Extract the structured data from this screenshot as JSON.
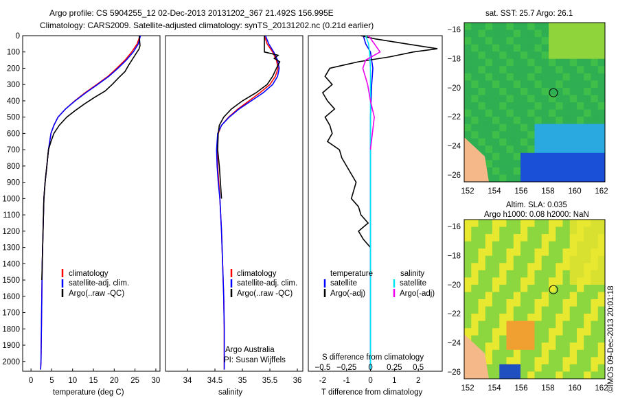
{
  "header": {
    "line1": "Argo profile: CS 5904255_12 02-Dec-2013 20131202_367 21.492S 156.995E",
    "line2": "Climatology: CARS2009. Satellite-adjusted climatology: synTS_20131202.nc (0.21d earlier)"
  },
  "colors": {
    "climatology": "#ff0000",
    "satellite": "#0000ff",
    "argo": "#000000",
    "salinity_satellite": "#00e5ee",
    "salinity_argo": "#ee00ee"
  },
  "chart_data": [
    {
      "id": "temperature",
      "type": "line",
      "xlabel": "temperature (deg C)",
      "xlim": [
        -2,
        31
      ],
      "xticks": [
        0,
        5,
        10,
        15,
        20,
        25,
        30
      ],
      "ylim": [
        0,
        2060
      ],
      "yticks": [
        0,
        100,
        200,
        300,
        400,
        500,
        600,
        700,
        800,
        900,
        1000,
        1100,
        1200,
        1300,
        1400,
        1500,
        1600,
        1700,
        1800,
        1900,
        2000
      ],
      "legend": [
        "climatology",
        "satellite-adj. clim.",
        "Argo(..raw -QC)"
      ],
      "series": [
        {
          "name": "climatology",
          "x": [
            26.2,
            25.5,
            24.2,
            22.6,
            20.6,
            18.5,
            15.8,
            13.0,
            10.5,
            8.3,
            6.5,
            5.5,
            4.8,
            4.2,
            3.8,
            3.4,
            3.1,
            2.9,
            2.7,
            2.6,
            2.5,
            2.4,
            2.3
          ],
          "y": [
            0,
            50,
            100,
            150,
            200,
            250,
            300,
            350,
            400,
            450,
            500,
            550,
            600,
            700,
            800,
            900,
            1000,
            1200,
            1400,
            1600,
            1800,
            2000,
            2050
          ]
        },
        {
          "name": "satellite-adj. clim.",
          "x": [
            26.3,
            25.8,
            24.6,
            22.9,
            20.9,
            18.7,
            16.0,
            13.2,
            10.6,
            8.3,
            6.5,
            5.5,
            4.8,
            4.2,
            3.8,
            3.4,
            3.1,
            2.9,
            2.7,
            2.6,
            2.5,
            2.4,
            2.3
          ],
          "y": [
            0,
            50,
            100,
            150,
            200,
            250,
            300,
            350,
            400,
            450,
            500,
            550,
            600,
            700,
            800,
            900,
            1000,
            1200,
            1400,
            1600,
            1800,
            2000,
            2050
          ]
        },
        {
          "name": "Argo(..raw -QC)",
          "x": [
            26.0,
            26.2,
            26.0,
            25.0,
            23.5,
            22.6,
            21.0,
            19.5,
            17.8,
            15.2,
            12.8,
            10.6,
            8.6,
            6.8,
            5.5,
            4.8,
            4.2,
            3.8,
            3.4,
            3.1,
            2.9,
            2.7,
            2.6
          ],
          "y": [
            0,
            60,
            80,
            120,
            180,
            220,
            260,
            300,
            340,
            380,
            420,
            460,
            500,
            550,
            600,
            650,
            700,
            800,
            900,
            1000,
            1200,
            1400,
            1500
          ]
        }
      ]
    },
    {
      "id": "salinity",
      "type": "line",
      "xlabel": "salinity",
      "xlim": [
        33.6,
        36.1
      ],
      "xticks": [
        34,
        34.5,
        35,
        35.5,
        36
      ],
      "xticklabels": [
        "34",
        "34.5",
        "35",
        "35.5",
        "36"
      ],
      "ylim": [
        0,
        2060
      ],
      "legend": [
        "climatology",
        "satellite-adj. clim.",
        "Argo(..raw -QC)"
      ],
      "annotation": [
        "Argo Australia",
        "PI: Susan Wijffels"
      ],
      "series": [
        {
          "name": "climatology",
          "x": [
            35.4,
            35.45,
            35.55,
            35.62,
            35.65,
            35.6,
            35.5,
            35.32,
            35.12,
            34.92,
            34.75,
            34.62,
            34.56,
            34.54,
            34.55,
            34.57,
            34.59,
            34.62,
            34.64,
            34.66,
            34.67,
            34.67
          ],
          "y": [
            0,
            50,
            100,
            150,
            200,
            250,
            300,
            350,
            400,
            450,
            500,
            550,
            600,
            700,
            800,
            900,
            1000,
            1200,
            1400,
            1600,
            1800,
            2050
          ]
        },
        {
          "name": "satellite-adj. clim.",
          "x": [
            35.42,
            35.48,
            35.57,
            35.64,
            35.67,
            35.64,
            35.55,
            35.38,
            35.16,
            34.94,
            34.76,
            34.62,
            34.55,
            34.53,
            34.54,
            34.56,
            34.59,
            34.62,
            34.64,
            34.66,
            34.67,
            34.67
          ],
          "y": [
            0,
            50,
            100,
            150,
            200,
            250,
            300,
            350,
            400,
            450,
            500,
            550,
            600,
            700,
            800,
            900,
            1000,
            1200,
            1400,
            1600,
            1800,
            2050
          ]
        },
        {
          "name": "Argo(..raw -QC)",
          "x": [
            35.4,
            35.4,
            35.65,
            35.58,
            35.68,
            35.62,
            35.55,
            35.45,
            35.25,
            35.0,
            34.8,
            34.66,
            34.58,
            34.56,
            34.55,
            34.58,
            34.6,
            34.62
          ],
          "y": [
            0,
            100,
            120,
            140,
            160,
            200,
            250,
            300,
            350,
            400,
            450,
            500,
            550,
            600,
            700,
            800,
            900,
            1000
          ]
        }
      ]
    },
    {
      "id": "difference",
      "type": "line",
      "xlabel": "T difference from climatology",
      "xlim": [
        -2.6,
        3.0
      ],
      "xticks": [
        -2,
        -1,
        0,
        1,
        2
      ],
      "topaxis_label": "S difference from climatology",
      "topaxis_ticks": [
        -0.5,
        -0.25,
        0,
        0.25,
        0.5
      ],
      "topaxis_ticklabels": [
        "−0.5",
        "−0.25",
        "0",
        "0.25",
        "0.5"
      ],
      "ylim": [
        0,
        2060
      ],
      "legend_left": [
        "temperature",
        "satellite",
        "Argo(-adj)"
      ],
      "legend_right": [
        "salinity",
        "satellite",
        "Argo(-adj)"
      ],
      "series": [
        {
          "name": "T satellite",
          "x": [
            -0.3,
            -0.2,
            0,
            0.1,
            0.05,
            0,
            0,
            0,
            0,
            0,
            0
          ],
          "y": [
            0,
            50,
            100,
            200,
            300,
            500,
            800,
            1000,
            1200,
            1600,
            2050
          ]
        },
        {
          "name": "T Argo(-adj)",
          "x": [
            -0.4,
            0.2,
            1.5,
            2.8,
            1.8,
            0.8,
            -0.5,
            -1.1,
            -1.7,
            -1.9,
            -1.6,
            -2.0,
            -1.8,
            -1.5,
            -1.9,
            -1.7,
            -1.6,
            -1.8,
            -1.3,
            -1.2,
            -1.0,
            -0.6,
            -0.8,
            -0.5,
            -0.4,
            -0.1,
            -0.5,
            -0.3,
            0
          ],
          "y": [
            0,
            20,
            50,
            80,
            100,
            130,
            160,
            180,
            200,
            250,
            300,
            350,
            400,
            450,
            500,
            550,
            600,
            650,
            700,
            750,
            800,
            900,
            1000,
            1050,
            1100,
            1150,
            1200,
            1250,
            1300
          ]
        },
        {
          "name": "S satellite",
          "x": [
            -0.05,
            -0.02,
            -0.01,
            0,
            0,
            0,
            0,
            0,
            0
          ],
          "y": [
            0,
            50,
            100,
            200,
            500,
            800,
            1200,
            1600,
            2050
          ]
        },
        {
          "name": "S Argo(-adj)",
          "x": [
            -0.02,
            0.1,
            -0.05,
            -0.08,
            -0.03,
            0,
            0.04,
            0.02,
            0.0
          ],
          "y": [
            0,
            100,
            150,
            200,
            300,
            400,
            500,
            600,
            700
          ]
        }
      ]
    },
    {
      "id": "sst-map",
      "type": "heatmap",
      "title": "sat. SST: 25.7 Argo: 26.1",
      "xticks": [
        152,
        154,
        156,
        158,
        160,
        162
      ],
      "yticks": [
        -16,
        -18,
        -20,
        -22,
        -24,
        -26
      ]
    },
    {
      "id": "sla-map",
      "type": "heatmap",
      "title": [
        "Altim. SLA: 0.035",
        "Argo h1000: 0.08 h2000: NaN"
      ],
      "xticks": [
        152,
        154,
        156,
        158,
        160,
        162
      ],
      "yticks": [
        -16,
        -18,
        -20,
        -22,
        -24,
        -26
      ]
    }
  ],
  "footer": {
    "timestamp": "©IMOS 09-Dec-2013 20:01:18"
  }
}
